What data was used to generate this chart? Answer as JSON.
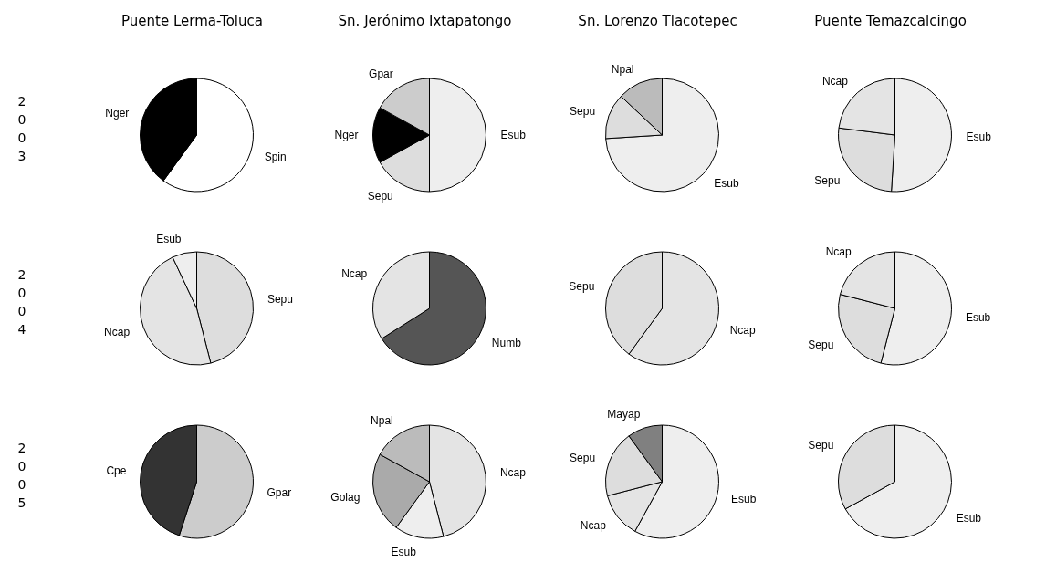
{
  "chart_data": [
    {
      "type": "pie",
      "title": "Puente Lerma-Toluca",
      "ylabel": "2003",
      "categories": [
        "Spin",
        "Nger"
      ],
      "values": [
        60,
        40
      ],
      "colors": [
        "#ffffff",
        "#000000"
      ]
    },
    {
      "type": "pie",
      "title": "Sn. Jerónimo Ixtapatongo",
      "categories": [
        "Esub",
        "Sepu",
        "Nger",
        "Gpar"
      ],
      "values": [
        50,
        17,
        16,
        17
      ],
      "colors": [
        "#eeeeee",
        "#dddddd",
        "#000000",
        "#cccccc"
      ]
    },
    {
      "type": "pie",
      "title": "Sn. Lorenzo Tlacotepec",
      "categories": [
        "Esub",
        "Sepu",
        "Npal"
      ],
      "values": [
        74,
        13,
        13
      ],
      "colors": [
        "#eeeeee",
        "#dddddd",
        "#bbbbbb"
      ]
    },
    {
      "type": "pie",
      "title": "Puente Temazcalcingo",
      "categories": [
        "Esub",
        "Sepu",
        "Ncap"
      ],
      "values": [
        51,
        26,
        23
      ],
      "colors": [
        "#eeeeee",
        "#dddddd",
        "#e4e4e4"
      ]
    },
    {
      "type": "pie",
      "ylabel": "2004",
      "categories": [
        "Sepu",
        "Ncap",
        "Esub"
      ],
      "values": [
        46,
        47,
        7
      ],
      "colors": [
        "#dddddd",
        "#e4e4e4",
        "#eeeeee"
      ]
    },
    {
      "type": "pie",
      "categories": [
        "Numb",
        "Ncap"
      ],
      "values": [
        66,
        34
      ],
      "colors": [
        "#555555",
        "#e4e4e4"
      ]
    },
    {
      "type": "pie",
      "categories": [
        "Ncap",
        "Sepu"
      ],
      "values": [
        60,
        40
      ],
      "colors": [
        "#e4e4e4",
        "#dddddd"
      ]
    },
    {
      "type": "pie",
      "categories": [
        "Esub",
        "Sepu",
        "Ncap"
      ],
      "values": [
        54,
        25,
        21
      ],
      "colors": [
        "#eeeeee",
        "#dddddd",
        "#e4e4e4"
      ]
    },
    {
      "type": "pie",
      "ylabel": "2005",
      "categories": [
        "Gpar",
        "Cpe"
      ],
      "values": [
        55,
        45
      ],
      "colors": [
        "#cccccc",
        "#333333"
      ]
    },
    {
      "type": "pie",
      "categories": [
        "Ncap",
        "Esub",
        "Golag",
        "Npal"
      ],
      "values": [
        46,
        14,
        23,
        17
      ],
      "colors": [
        "#e4e4e4",
        "#eeeeee",
        "#aaaaaa",
        "#bbbbbb"
      ]
    },
    {
      "type": "pie",
      "categories": [
        "Esub",
        "Ncap",
        "Sepu",
        "Mayap"
      ],
      "values": [
        58,
        13,
        19,
        10
      ],
      "colors": [
        "#eeeeee",
        "#e4e4e4",
        "#dddddd",
        "#808080"
      ]
    },
    {
      "type": "pie",
      "categories": [
        "Esub",
        "Sepu"
      ],
      "values": [
        67,
        33
      ],
      "colors": [
        "#eeeeee",
        "#dddddd"
      ]
    }
  ]
}
